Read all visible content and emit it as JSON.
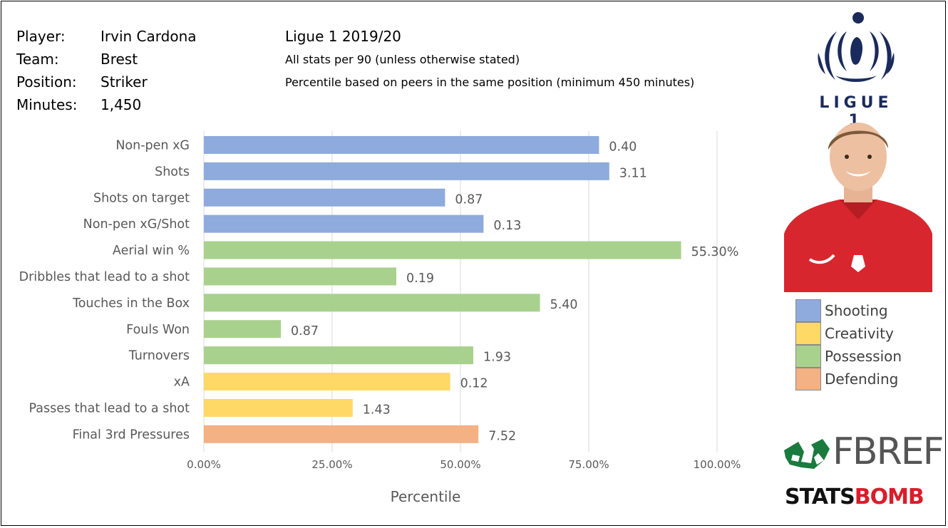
{
  "player_info": {
    "player_label": "Player:",
    "player_value": "Irvin Cardona",
    "team_label": "Team:",
    "team_value": "Brest",
    "position_label": "Position:",
    "position_value": "Striker",
    "minutes_label": "Minutes:",
    "minutes_value": "1,450"
  },
  "meta": {
    "season": "Ligue 1 2019/20",
    "note1": "All stats per 90 (unless otherwise stated)",
    "note2": "Percentile based on peers in the same position (minimum 450 minutes)"
  },
  "logos": {
    "league_wordmark": "LIGUE 1",
    "fbref_text": "FBREF",
    "statsbomb_stats": "STATS",
    "statsbomb_bomb": "BOMB"
  },
  "colors": {
    "Shooting": "#8faadc",
    "Creativity": "#ffd966",
    "Possession": "#a9d18e",
    "Defending": "#f4b183"
  },
  "legend": [
    {
      "name": "Shooting"
    },
    {
      "name": "Creativity"
    },
    {
      "name": "Possession"
    },
    {
      "name": "Defending"
    }
  ],
  "chart_data": {
    "type": "bar",
    "orientation": "horizontal",
    "title": "",
    "xlabel": "Percentile",
    "ylabel": "",
    "xlim": [
      0,
      1
    ],
    "xticks": [
      0,
      0.25,
      0.5,
      0.75,
      1.0
    ],
    "xtick_labels": [
      "0.00%",
      "25.00%",
      "50.00%",
      "75.00%",
      "100.00%"
    ],
    "grid": "vertical",
    "legend_position": "right",
    "categories": [
      "Non-pen xG",
      "Shots",
      "Shots on target",
      "Non-pen xG/Shot",
      "Aerial win %",
      "Dribbles that lead to a shot",
      "Touches in the Box",
      "Fouls Won",
      "Turnovers",
      "xA",
      "Passes that lead to a shot",
      "Final 3rd Pressures"
    ],
    "percentiles": [
      0.77,
      0.79,
      0.47,
      0.545,
      0.93,
      0.375,
      0.655,
      0.15,
      0.525,
      0.48,
      0.29,
      0.535
    ],
    "value_labels": [
      "0.40",
      "3.11",
      "0.87",
      "0.13",
      "55.30%",
      "0.19",
      "5.40",
      "0.87",
      "1.93",
      "0.12",
      "1.43",
      "7.52"
    ],
    "groups": [
      "Shooting",
      "Shooting",
      "Shooting",
      "Shooting",
      "Possession",
      "Possession",
      "Possession",
      "Possession",
      "Possession",
      "Creativity",
      "Creativity",
      "Defending"
    ]
  }
}
